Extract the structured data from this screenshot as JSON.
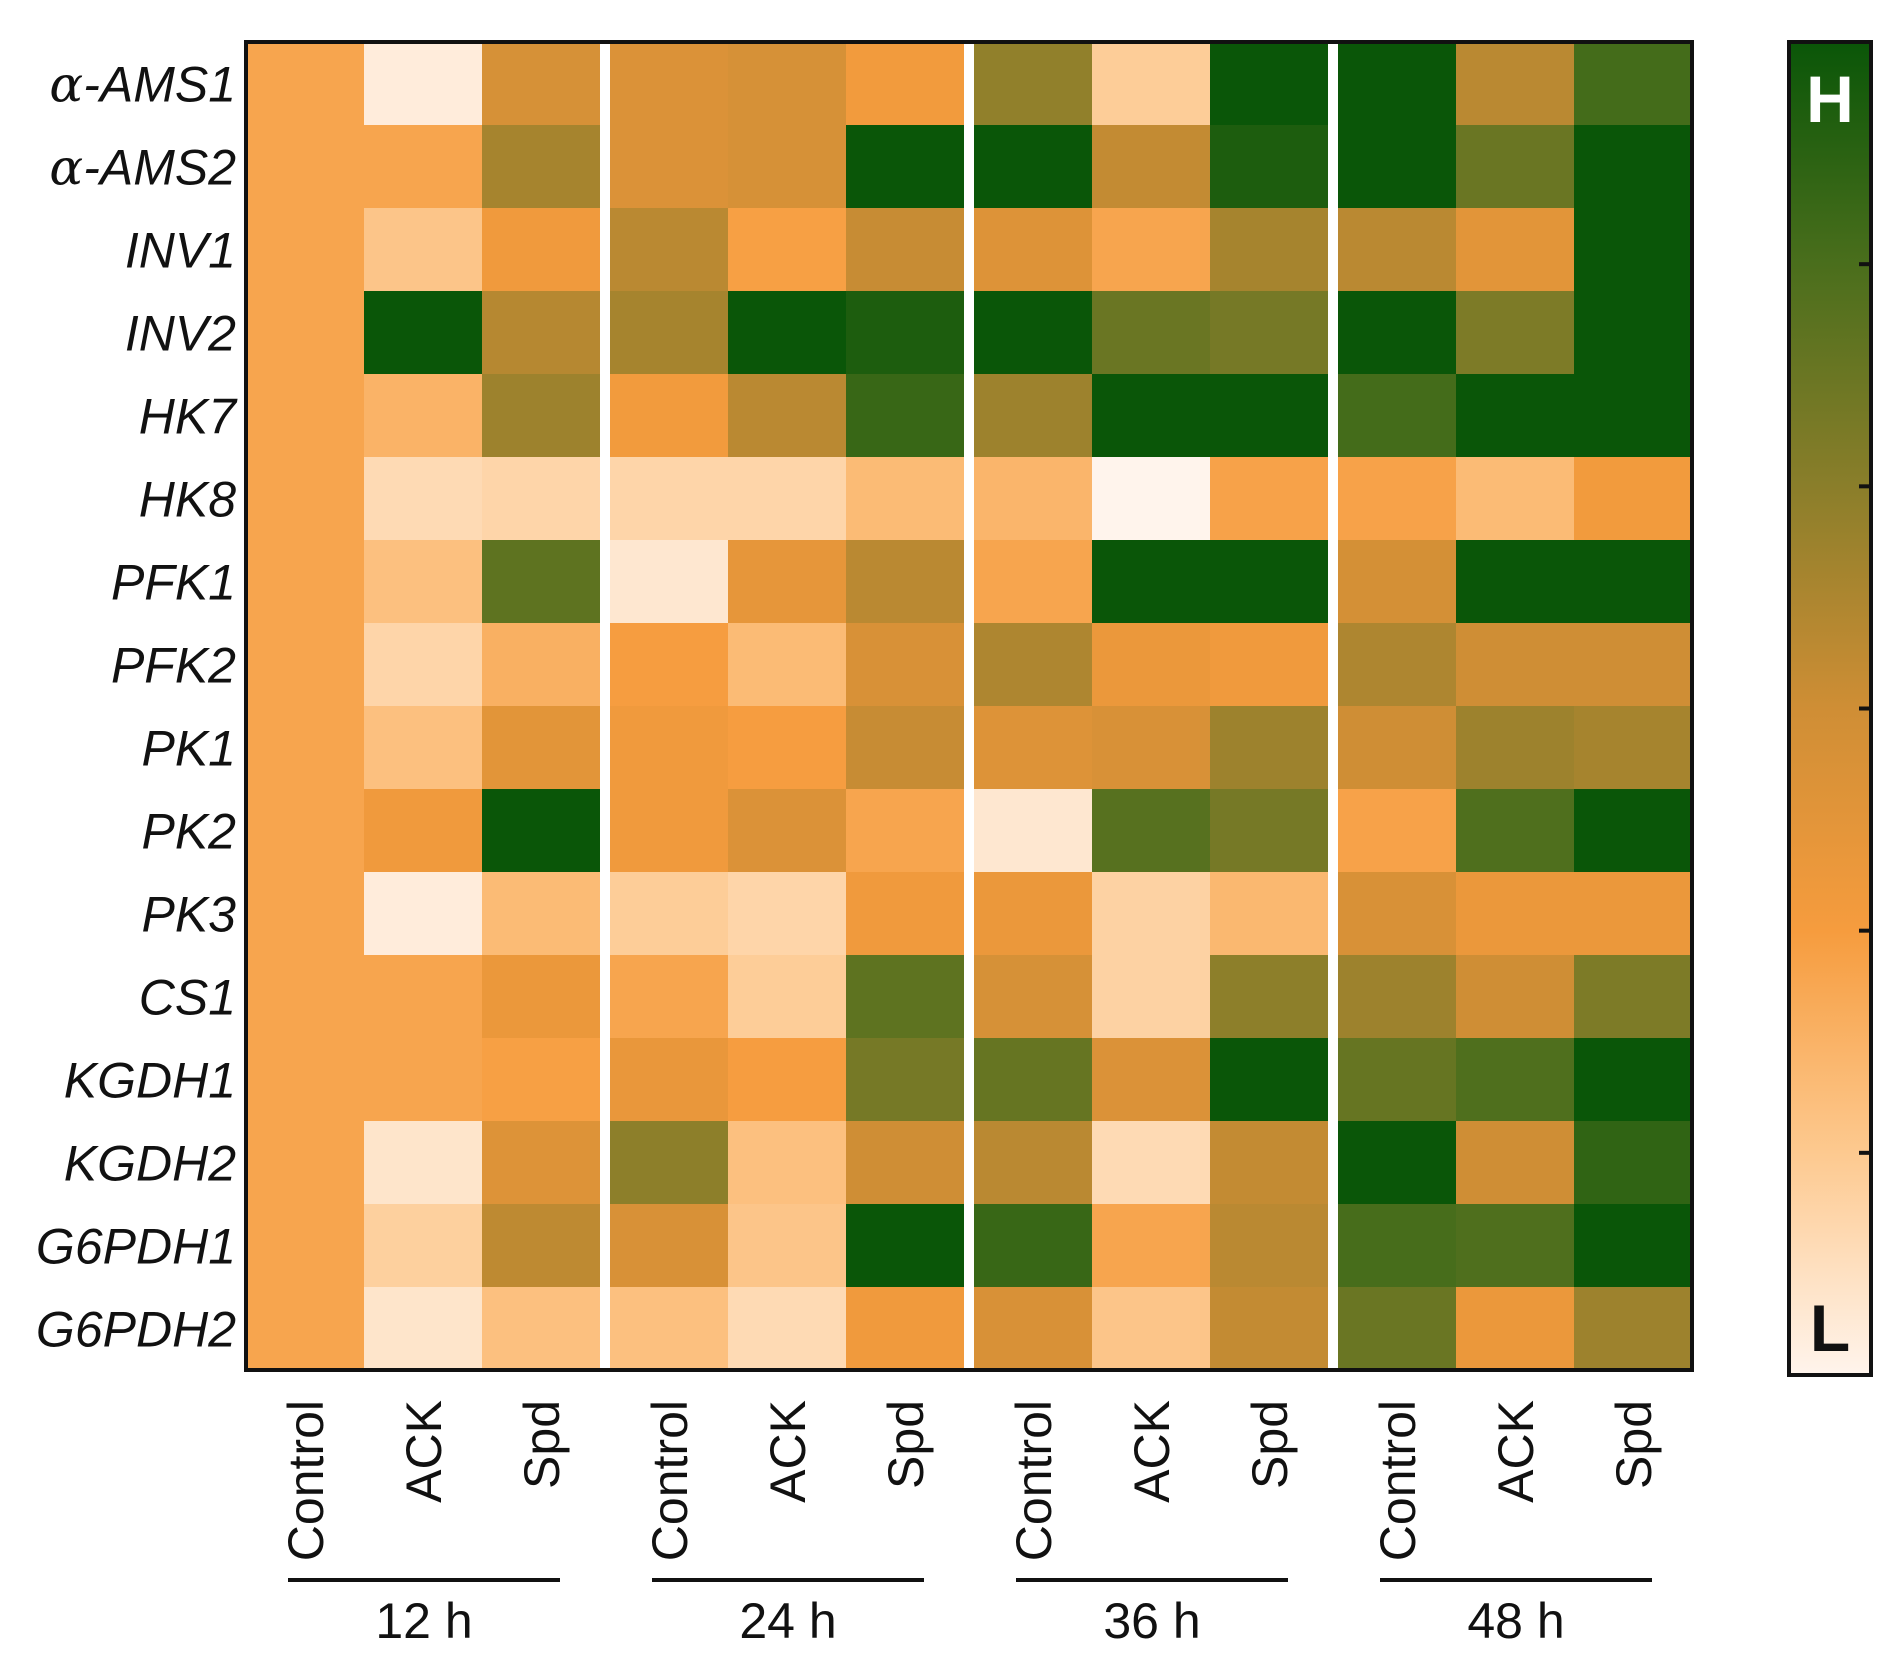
{
  "chart_data": {
    "type": "heatmap",
    "title": "",
    "rows": [
      "α-AMS1",
      "α-AMS2",
      "INV1",
      "INV2",
      "HK7",
      "HK8",
      "PFK1",
      "PFK2",
      "PK1",
      "PK2",
      "PK3",
      "CS1",
      "KGDH1",
      "KGDH2",
      "G6PDH1",
      "G6PDH2"
    ],
    "row_prefix": "α-",
    "columns": [
      "Control",
      "ACK",
      "Spd",
      "Control",
      "ACK",
      "Spd",
      "Control",
      "ACK",
      "Spd",
      "Control",
      "ACK",
      "Spd"
    ],
    "groups": [
      {
        "label": "12 h",
        "columns": [
          0,
          1,
          2
        ]
      },
      {
        "label": "24 h",
        "columns": [
          3,
          4,
          5
        ]
      },
      {
        "label": "36 h",
        "columns": [
          6,
          7,
          8
        ]
      },
      {
        "label": "48 h",
        "columns": [
          9,
          10,
          11
        ]
      }
    ],
    "color_scale": {
      "low_label": "L",
      "high_label": "H",
      "stops": [
        "#fff4ec",
        "#fdc98f",
        "#f69c3e",
        "#cf8e35",
        "#8a7e2a",
        "#4a6e1c",
        "#0a5608"
      ],
      "range": [
        0,
        1
      ],
      "tick_count": 5
    },
    "values": [
      [
        0.3,
        0.03,
        0.47,
        0.45,
        0.47,
        0.35,
        0.65,
        0.15,
        1.0,
        1.0,
        0.55,
        0.85
      ],
      [
        0.3,
        0.3,
        0.6,
        0.45,
        0.47,
        1.0,
        1.0,
        0.53,
        0.95,
        1.0,
        0.75,
        1.0
      ],
      [
        0.3,
        0.18,
        0.36,
        0.55,
        0.32,
        0.52,
        0.44,
        0.3,
        0.6,
        0.55,
        0.42,
        1.0
      ],
      [
        0.3,
        1.0,
        0.56,
        0.6,
        1.0,
        0.95,
        1.0,
        0.75,
        0.72,
        1.0,
        0.7,
        1.0
      ],
      [
        0.3,
        0.25,
        0.62,
        0.35,
        0.55,
        0.88,
        0.62,
        1.0,
        1.0,
        0.85,
        1.0,
        1.0
      ],
      [
        0.3,
        0.1,
        0.12,
        0.12,
        0.12,
        0.22,
        0.24,
        0.0,
        0.31,
        0.31,
        0.22,
        0.35
      ],
      [
        0.3,
        0.2,
        0.78,
        0.05,
        0.4,
        0.55,
        0.3,
        1.0,
        1.0,
        0.48,
        1.0,
        1.0
      ],
      [
        0.3,
        0.12,
        0.26,
        0.33,
        0.22,
        0.46,
        0.58,
        0.38,
        0.36,
        0.58,
        0.5,
        0.5
      ],
      [
        0.3,
        0.2,
        0.42,
        0.36,
        0.33,
        0.52,
        0.44,
        0.46,
        0.62,
        0.5,
        0.62,
        0.6
      ],
      [
        0.3,
        0.36,
        1.0,
        0.36,
        0.45,
        0.3,
        0.05,
        0.8,
        0.72,
        0.31,
        0.82,
        1.0
      ],
      [
        0.3,
        0.03,
        0.22,
        0.15,
        0.12,
        0.36,
        0.38,
        0.13,
        0.23,
        0.46,
        0.38,
        0.38
      ],
      [
        0.3,
        0.3,
        0.38,
        0.3,
        0.15,
        0.78,
        0.47,
        0.13,
        0.66,
        0.62,
        0.5,
        0.7
      ],
      [
        0.3,
        0.3,
        0.32,
        0.39,
        0.33,
        0.72,
        0.76,
        0.45,
        1.0,
        0.76,
        0.82,
        1.0
      ],
      [
        0.3,
        0.06,
        0.44,
        0.66,
        0.2,
        0.5,
        0.55,
        0.1,
        0.53,
        1.0,
        0.5,
        0.9
      ],
      [
        0.3,
        0.14,
        0.54,
        0.46,
        0.18,
        1.0,
        0.88,
        0.3,
        0.55,
        0.84,
        0.82,
        1.0
      ],
      [
        0.3,
        0.06,
        0.2,
        0.2,
        0.1,
        0.36,
        0.46,
        0.18,
        0.53,
        0.75,
        0.38,
        0.62
      ]
    ]
  }
}
